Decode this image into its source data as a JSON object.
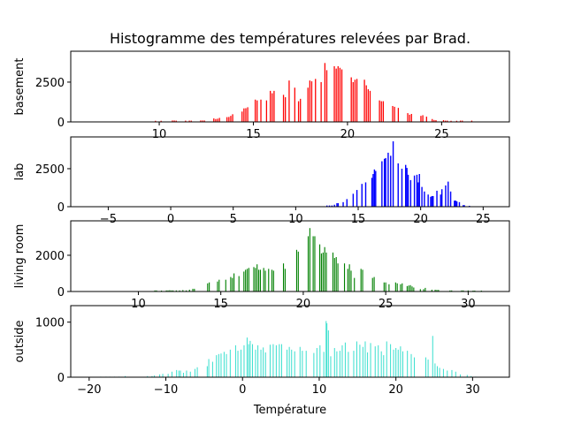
{
  "chart_data": {
    "type": "bar",
    "title": "Histogramme des températures relevées par Brad.",
    "xlabel": "Température",
    "layout": {
      "rows": 4,
      "cols": 1,
      "grid": false,
      "legend": "none",
      "sharex": false
    },
    "subplots": [
      {
        "name": "basement",
        "ylabel": "basement",
        "color": "#ff0000",
        "xlim": [
          5.3,
          28.6
        ],
        "ylim": [
          0,
          4440
        ],
        "xticks": [
          10,
          15,
          20,
          25
        ],
        "yticks": [
          0,
          2500
        ],
        "bar_width": 0.06,
        "x": [
          9.8,
          10.1,
          10.7,
          10.8,
          10.9,
          11.4,
          11.6,
          11.7,
          12.2,
          12.3,
          12.4,
          12.9,
          13.0,
          13.1,
          13.2,
          13.6,
          13.7,
          13.8,
          13.9,
          14.4,
          14.5,
          14.6,
          14.7,
          15.1,
          15.2,
          15.4,
          15.7,
          15.9,
          16.0,
          16.1,
          16.6,
          16.7,
          16.9,
          17.2,
          17.4,
          17.5,
          17.9,
          18.0,
          18.1,
          18.3,
          18.6,
          18.8,
          18.9,
          19.3,
          19.4,
          19.5,
          19.6,
          19.7,
          20.2,
          20.3,
          20.4,
          20.5,
          20.9,
          21.0,
          21.1,
          21.2,
          21.7,
          21.8,
          21.9,
          22.4,
          22.5,
          22.7,
          23.2,
          23.3,
          23.4,
          23.9,
          24.0,
          24.2,
          24.5,
          24.6,
          24.7,
          25.1,
          25.2,
          25.3,
          25.5,
          25.8,
          26.0,
          26.1,
          26.6
        ],
        "values": [
          70,
          70,
          90,
          90,
          80,
          80,
          80,
          80,
          90,
          90,
          90,
          220,
          180,
          200,
          250,
          300,
          310,
          380,
          480,
          650,
          850,
          860,
          920,
          1400,
          1350,
          1400,
          1350,
          1950,
          1800,
          1950,
          1700,
          1550,
          2600,
          2150,
          1300,
          1450,
          2150,
          2600,
          2550,
          2700,
          2500,
          3700,
          3250,
          3500,
          3350,
          3500,
          3400,
          3300,
          2800,
          2500,
          2650,
          2700,
          2650,
          2300,
          2050,
          1950,
          1350,
          1300,
          1300,
          1000,
          950,
          880,
          550,
          450,
          500,
          380,
          420,
          330,
          180,
          120,
          110,
          110,
          80,
          80,
          70,
          70,
          80,
          80,
          80
        ]
      },
      {
        "name": "lab",
        "ylabel": "lab",
        "color": "#0000ff",
        "xlim": [
          -8.0,
          27.1
        ],
        "ylim": [
          0,
          4590
        ],
        "xticks": [
          -5,
          0,
          5,
          10,
          15,
          20,
          25
        ],
        "yticks": [
          0,
          2500
        ],
        "bar_width": 0.1,
        "x": [
          12.5,
          12.7,
          12.9,
          13.1,
          13.3,
          13.4,
          13.8,
          14.1,
          14.6,
          14.9,
          15.3,
          15.6,
          16.1,
          16.2,
          16.3,
          16.4,
          16.9,
          17.1,
          17.2,
          17.4,
          17.6,
          17.8,
          18.2,
          18.5,
          18.8,
          18.9,
          19.0,
          19.2,
          19.5,
          19.7,
          19.8,
          19.9,
          20.1,
          20.3,
          20.6,
          20.8,
          20.9,
          21.0,
          21.3,
          21.6,
          21.7,
          22.0,
          22.2,
          22.4,
          22.7,
          22.8,
          22.9,
          23.1,
          23.4,
          23.5,
          23.9
        ],
        "values": [
          80,
          80,
          80,
          130,
          230,
          230,
          300,
          500,
          850,
          1100,
          1500,
          1600,
          1900,
          2150,
          2450,
          2350,
          2990,
          3150,
          3200,
          3550,
          3350,
          4300,
          2850,
          2500,
          2750,
          2550,
          2100,
          1750,
          2050,
          2100,
          1600,
          2150,
          1300,
          1000,
          800,
          650,
          700,
          700,
          1050,
          800,
          1150,
          1400,
          1650,
          1000,
          400,
          400,
          350,
          300,
          100,
          100,
          60
        ]
      },
      {
        "name": "living room",
        "ylabel": "living room",
        "color": "#008000",
        "xlim": [
          5.9,
          32.5
        ],
        "ylim": [
          0,
          3900
        ],
        "xticks": [
          10,
          15,
          20,
          25,
          30
        ],
        "yticks": [
          0,
          2000
        ],
        "bar_width": 0.06,
        "x": [
          11.0,
          11.1,
          11.4,
          11.7,
          11.8,
          11.9,
          12.0,
          12.1,
          12.3,
          12.5,
          12.7,
          12.9,
          13.1,
          13.3,
          13.4,
          14.2,
          14.3,
          14.8,
          14.9,
          15.3,
          15.6,
          15.7,
          15.8,
          16.1,
          16.4,
          16.5,
          16.6,
          16.7,
          17.0,
          17.1,
          17.2,
          17.3,
          17.4,
          17.6,
          17.7,
          17.9,
          18.1,
          18.2,
          18.8,
          18.9,
          19.6,
          19.7,
          20.3,
          20.4,
          20.6,
          20.7,
          21.0,
          21.1,
          21.2,
          21.3,
          21.4,
          21.8,
          21.9,
          22.0,
          22.1,
          22.5,
          22.7,
          22.8,
          22.9,
          23.1,
          23.5,
          23.6,
          24.2,
          24.3,
          24.9,
          25.0,
          25.2,
          25.6,
          25.7,
          25.9,
          26.0,
          26.3,
          26.4,
          26.5,
          26.6,
          26.7,
          27.1,
          27.3,
          27.4,
          27.8,
          28.0,
          28.1,
          28.2,
          28.9,
          29.0,
          29.6,
          29.7,
          30.0,
          30.3,
          30.4,
          30.8
        ],
        "values": [
          60,
          60,
          50,
          60,
          60,
          70,
          60,
          60,
          60,
          60,
          80,
          60,
          100,
          150,
          150,
          450,
          500,
          550,
          650,
          650,
          800,
          750,
          1000,
          850,
          1100,
          1200,
          1250,
          1300,
          1350,
          1300,
          1500,
          1200,
          1200,
          1300,
          1150,
          1250,
          1200,
          1150,
          1550,
          1250,
          2300,
          2200,
          3050,
          3500,
          3050,
          3050,
          2600,
          2100,
          2150,
          2450,
          2150,
          2150,
          1850,
          1900,
          1550,
          1550,
          1250,
          1500,
          1150,
          750,
          1250,
          1200,
          750,
          800,
          500,
          500,
          400,
          500,
          450,
          400,
          450,
          300,
          330,
          350,
          280,
          220,
          130,
          130,
          200,
          100,
          100,
          90,
          90,
          60,
          60,
          60,
          60,
          60,
          50,
          50,
          50
        ]
      },
      {
        "name": "outside",
        "ylabel": "outside",
        "color": "#40e0d0",
        "xlim": [
          -22.4,
          34.8
        ],
        "ylim": [
          0,
          1300
        ],
        "xticks": [
          -20,
          -10,
          0,
          10,
          20,
          30
        ],
        "yticks": [
          0,
          1000
        ],
        "bar_width": 0.12,
        "x": [
          -18.5,
          -17.8,
          -17.3,
          -16.7,
          -16.1,
          -15.3,
          -12.4,
          -11.8,
          -11.5,
          -10.8,
          -10.4,
          -9.7,
          -9.2,
          -8.6,
          -8.3,
          -8.1,
          -7.7,
          -7.3,
          -6.8,
          -6.2,
          -5.9,
          -4.6,
          -4.4,
          -3.9,
          -3.4,
          -3.1,
          -2.8,
          -2.4,
          -2.1,
          -1.6,
          -0.9,
          -0.6,
          -0.2,
          0.2,
          0.6,
          0.8,
          1.0,
          1.3,
          1.7,
          2.0,
          2.4,
          2.7,
          3.0,
          3.6,
          4.0,
          4.4,
          4.8,
          5.1,
          5.8,
          6.1,
          6.4,
          6.8,
          7.5,
          7.8,
          8.3,
          9.3,
          9.7,
          10.1,
          10.6,
          10.9,
          11.0,
          11.2,
          11.5,
          12.0,
          12.3,
          12.7,
          13.0,
          13.4,
          13.8,
          14.5,
          14.9,
          15.3,
          15.7,
          16.0,
          16.3,
          16.7,
          17.3,
          17.7,
          18.1,
          18.4,
          18.8,
          19.3,
          19.7,
          20.0,
          20.3,
          20.6,
          20.9,
          21.5,
          22.0,
          22.4,
          23.9,
          24.2,
          24.8,
          25.1,
          25.4,
          25.7,
          26.2,
          26.7,
          27.3,
          27.8,
          28.4,
          29.3,
          29.8,
          30.4
        ],
        "values": [
          10,
          10,
          10,
          10,
          10,
          20,
          20,
          20,
          30,
          50,
          60,
          60,
          100,
          130,
          120,
          120,
          80,
          120,
          100,
          150,
          180,
          200,
          330,
          280,
          400,
          420,
          430,
          460,
          420,
          500,
          580,
          480,
          500,
          580,
          720,
          600,
          660,
          600,
          500,
          580,
          500,
          540,
          450,
          590,
          600,
          580,
          600,
          600,
          500,
          550,
          500,
          470,
          550,
          480,
          480,
          440,
          530,
          580,
          460,
          1020,
          980,
          850,
          380,
          530,
          470,
          480,
          580,
          630,
          460,
          480,
          650,
          590,
          550,
          650,
          450,
          620,
          560,
          580,
          470,
          400,
          650,
          600,
          500,
          530,
          500,
          560,
          470,
          480,
          420,
          360,
          360,
          320,
          750,
          250,
          200,
          170,
          150,
          120,
          130,
          100,
          50,
          40,
          20,
          10
        ]
      }
    ]
  }
}
